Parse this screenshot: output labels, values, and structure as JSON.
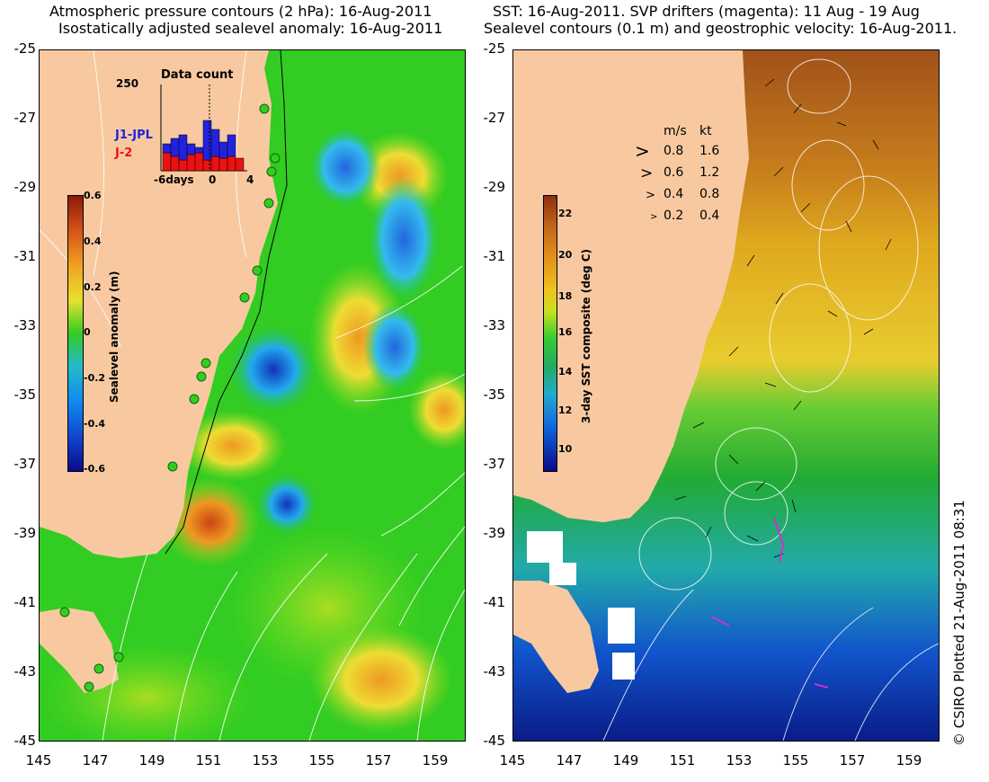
{
  "left_panel": {
    "title_line1": "Atmospheric pressure contours (2 hPa): 16-Aug-2011",
    "title_line2": "Isostatically adjusted sealevel anomaly: 16-Aug-2011",
    "y_ticks": [
      "-25",
      "-27",
      "-29",
      "-31",
      "-33",
      "-35",
      "-37",
      "-39",
      "-41",
      "-43",
      "-45"
    ],
    "x_ticks": [
      "145",
      "147",
      "149",
      "151",
      "153",
      "155",
      "157",
      "159"
    ],
    "colorbar": {
      "label": "Sealevel anomaly (m)",
      "ticks": [
        "0.6",
        "0.4",
        "0.2",
        "0",
        "-0.2",
        "-0.4",
        "-0.6"
      ]
    },
    "data_count": {
      "title": "Data count",
      "y_max": "250",
      "x_ticks": [
        "-6days",
        "0",
        "4"
      ],
      "legend": [
        {
          "label": "J1-JPL",
          "color": "#2222dd"
        },
        {
          "label": "J-2",
          "color": "#ee1111"
        }
      ]
    }
  },
  "right_panel": {
    "title_line1": "SST: 16-Aug-2011. SVP drifters (magenta): 11 Aug - 19 Aug",
    "title_line2": "Sealevel contours (0.1 m) and geostrophic velocity: 16-Aug-2011.",
    "y_ticks": [
      "-25",
      "-27",
      "-29",
      "-31",
      "-33",
      "-35",
      "-37",
      "-39",
      "-41",
      "-43",
      "-45"
    ],
    "x_ticks": [
      "145",
      "147",
      "149",
      "151",
      "153",
      "155",
      "157",
      "159"
    ],
    "colorbar": {
      "label": "3-day SST composite (deg C)",
      "ticks": [
        "22",
        "20",
        "18",
        "16",
        "14",
        "12",
        "10"
      ]
    },
    "velocity_legend": {
      "header_ms": "m/s",
      "header_kt": "kt",
      "rows": [
        {
          "ms": "0.8",
          "kt": "1.6"
        },
        {
          "ms": "0.6",
          "kt": "1.2"
        },
        {
          "ms": "0.4",
          "kt": "0.8"
        },
        {
          "ms": "0.2",
          "kt": "0.4"
        }
      ]
    }
  },
  "copyright": "© CSIRO Plotted 21-Aug-2011 08:31",
  "colors": {
    "land": "#f8c9a0",
    "ocean_green": "#33cc22",
    "sst_orange": "#d9a020",
    "sst_blue": "#1144cc"
  }
}
